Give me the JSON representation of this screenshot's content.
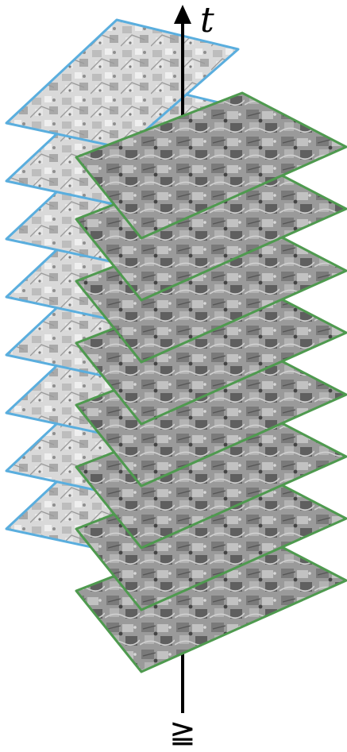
{
  "diagram": {
    "axis": {
      "top_label": "t",
      "bottom_label": "≧"
    },
    "stack_a": {
      "layer_count": 8,
      "border_color": "#5aaede"
    },
    "stack_b": {
      "layer_count": 8,
      "border_color": "#4f9a4f"
    }
  },
  "colors": {
    "axis": "#000000",
    "texture_light": "#c9c9c9",
    "texture_dark": "#6f6f6f"
  }
}
